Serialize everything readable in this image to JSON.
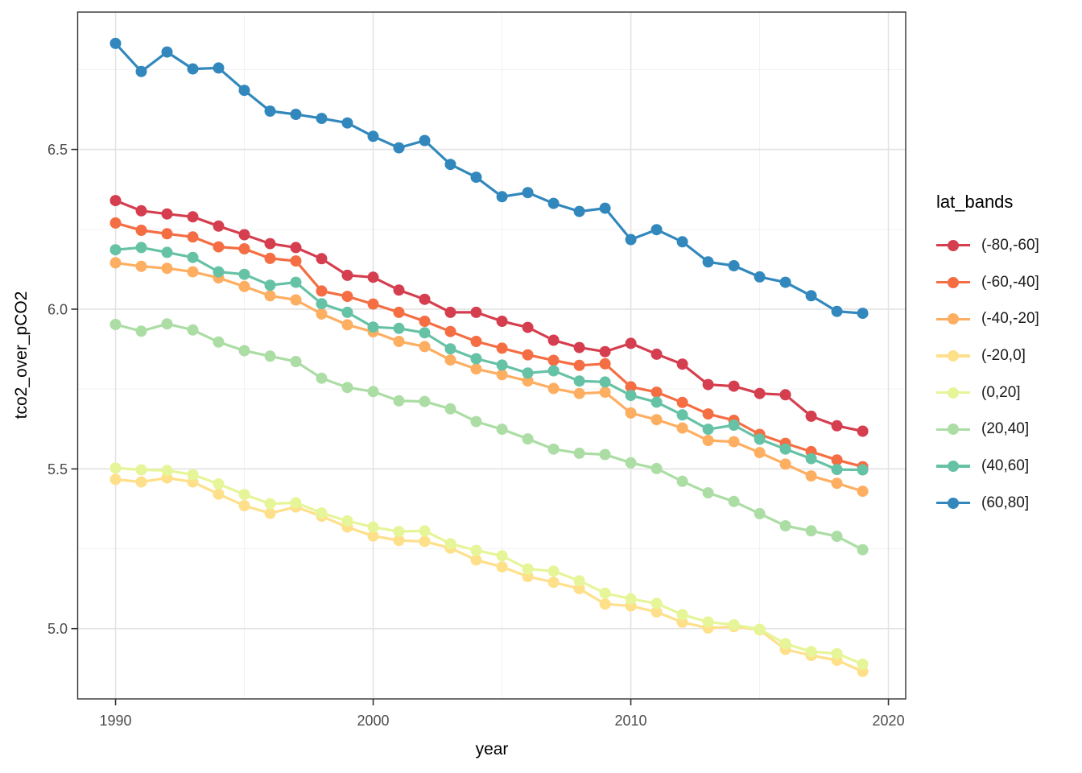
{
  "figure": {
    "background": "#ffffff"
  },
  "colors": {
    "panel_background": "#ffffff",
    "panel_border": "#333333",
    "grid_major": "#e3e3e3",
    "grid_minor": "#f0f0f0",
    "tick_mark": "#333333",
    "tick_label": "#4d4d4d",
    "axis_title": "#000000",
    "legend_text": "#1a1a1a"
  },
  "chart_data": {
    "type": "line",
    "title": "",
    "xlabel": "year",
    "ylabel": "tco2_over_pCO2",
    "legend_title": "lat_bands",
    "legend_position": "right",
    "grid": true,
    "marker": "point",
    "x_ticks": [
      1990,
      2000,
      2010,
      2020
    ],
    "x_tick_labels": [
      "1990",
      "2000",
      "2010",
      "2020"
    ],
    "x_minor_ticks": [
      1995,
      2005,
      2015
    ],
    "y_ticks": [
      5.0,
      5.5,
      6.0,
      6.5
    ],
    "y_tick_labels": [
      "5.0",
      "5.5",
      "6.0",
      "6.5"
    ],
    "y_minor_ticks": [
      5.25,
      5.75,
      6.25,
      6.75
    ],
    "xlim": [
      1988.53,
      2020.67
    ],
    "ylim": [
      4.78,
      6.93
    ],
    "x": [
      1990,
      1991,
      1992,
      1993,
      1994,
      1995,
      1996,
      1997,
      1998,
      1999,
      2000,
      2001,
      2002,
      2003,
      2004,
      2005,
      2006,
      2007,
      2008,
      2009,
      2010,
      2011,
      2012,
      2013,
      2014,
      2015,
      2016,
      2017,
      2018,
      2019
    ],
    "series": [
      {
        "name": "(-80,-60]",
        "color": "#d53e4f",
        "values": [
          6.34,
          6.308,
          6.298,
          6.289,
          6.26,
          6.233,
          6.205,
          6.193,
          6.158,
          6.106,
          6.1,
          6.06,
          6.031,
          5.99,
          5.99,
          5.962,
          5.943,
          5.903,
          5.88,
          5.867,
          5.893,
          5.859,
          5.828,
          5.764,
          5.759,
          5.736,
          5.732,
          5.665,
          5.635,
          5.618
        ]
      },
      {
        "name": "(-60,-40]",
        "color": "#f46d43",
        "values": [
          6.27,
          6.247,
          6.236,
          6.226,
          6.195,
          6.189,
          6.159,
          6.151,
          6.057,
          6.04,
          6.016,
          5.99,
          5.962,
          5.93,
          5.899,
          5.878,
          5.857,
          5.84,
          5.824,
          5.829,
          5.757,
          5.74,
          5.708,
          5.672,
          5.652,
          5.608,
          5.58,
          5.554,
          5.528,
          5.507
        ]
      },
      {
        "name": "(-40,-20]",
        "color": "#fdae61",
        "values": [
          6.145,
          6.134,
          6.128,
          6.117,
          6.098,
          6.071,
          6.042,
          6.029,
          5.985,
          5.951,
          5.929,
          5.899,
          5.883,
          5.841,
          5.813,
          5.795,
          5.775,
          5.752,
          5.736,
          5.74,
          5.675,
          5.654,
          5.628,
          5.589,
          5.585,
          5.551,
          5.515,
          5.478,
          5.455,
          5.43
        ]
      },
      {
        "name": "(-20,0]",
        "color": "#fee08b",
        "values": [
          5.467,
          5.459,
          5.472,
          5.459,
          5.421,
          5.385,
          5.361,
          5.381,
          5.352,
          5.318,
          5.29,
          5.276,
          5.273,
          5.252,
          5.215,
          5.193,
          5.163,
          5.145,
          5.125,
          5.077,
          5.071,
          5.052,
          5.02,
          5.002,
          5.006,
          4.996,
          4.935,
          4.916,
          4.901,
          4.866
        ]
      },
      {
        "name": "(0,20]",
        "color": "#e6f598",
        "values": [
          5.503,
          5.497,
          5.495,
          5.482,
          5.453,
          5.42,
          5.391,
          5.394,
          5.362,
          5.337,
          5.318,
          5.304,
          5.306,
          5.266,
          5.245,
          5.228,
          5.187,
          5.18,
          5.15,
          5.111,
          5.093,
          5.079,
          5.044,
          5.021,
          5.012,
          4.998,
          4.953,
          4.928,
          4.922,
          4.889
        ]
      },
      {
        "name": "(20,40]",
        "color": "#abdda4",
        "values": [
          5.952,
          5.931,
          5.954,
          5.935,
          5.897,
          5.87,
          5.853,
          5.836,
          5.784,
          5.755,
          5.742,
          5.713,
          5.711,
          5.688,
          5.648,
          5.624,
          5.594,
          5.562,
          5.549,
          5.545,
          5.519,
          5.501,
          5.461,
          5.425,
          5.398,
          5.36,
          5.322,
          5.306,
          5.289,
          5.247
        ]
      },
      {
        "name": "(40,60]",
        "color": "#66c2a5",
        "values": [
          6.186,
          6.193,
          6.178,
          6.162,
          6.117,
          6.109,
          6.075,
          6.084,
          6.017,
          5.99,
          5.944,
          5.94,
          5.926,
          5.876,
          5.845,
          5.825,
          5.8,
          5.807,
          5.775,
          5.772,
          5.73,
          5.709,
          5.669,
          5.624,
          5.637,
          5.593,
          5.562,
          5.532,
          5.498,
          5.497
        ]
      },
      {
        "name": "(60,80]",
        "color": "#3288bd",
        "values": [
          6.832,
          6.744,
          6.805,
          6.752,
          6.755,
          6.685,
          6.62,
          6.61,
          6.597,
          6.583,
          6.541,
          6.505,
          6.528,
          6.453,
          6.413,
          6.352,
          6.365,
          6.331,
          6.306,
          6.316,
          6.218,
          6.249,
          6.211,
          6.148,
          6.136,
          6.101,
          6.084,
          6.042,
          5.993,
          5.987
        ]
      }
    ]
  }
}
